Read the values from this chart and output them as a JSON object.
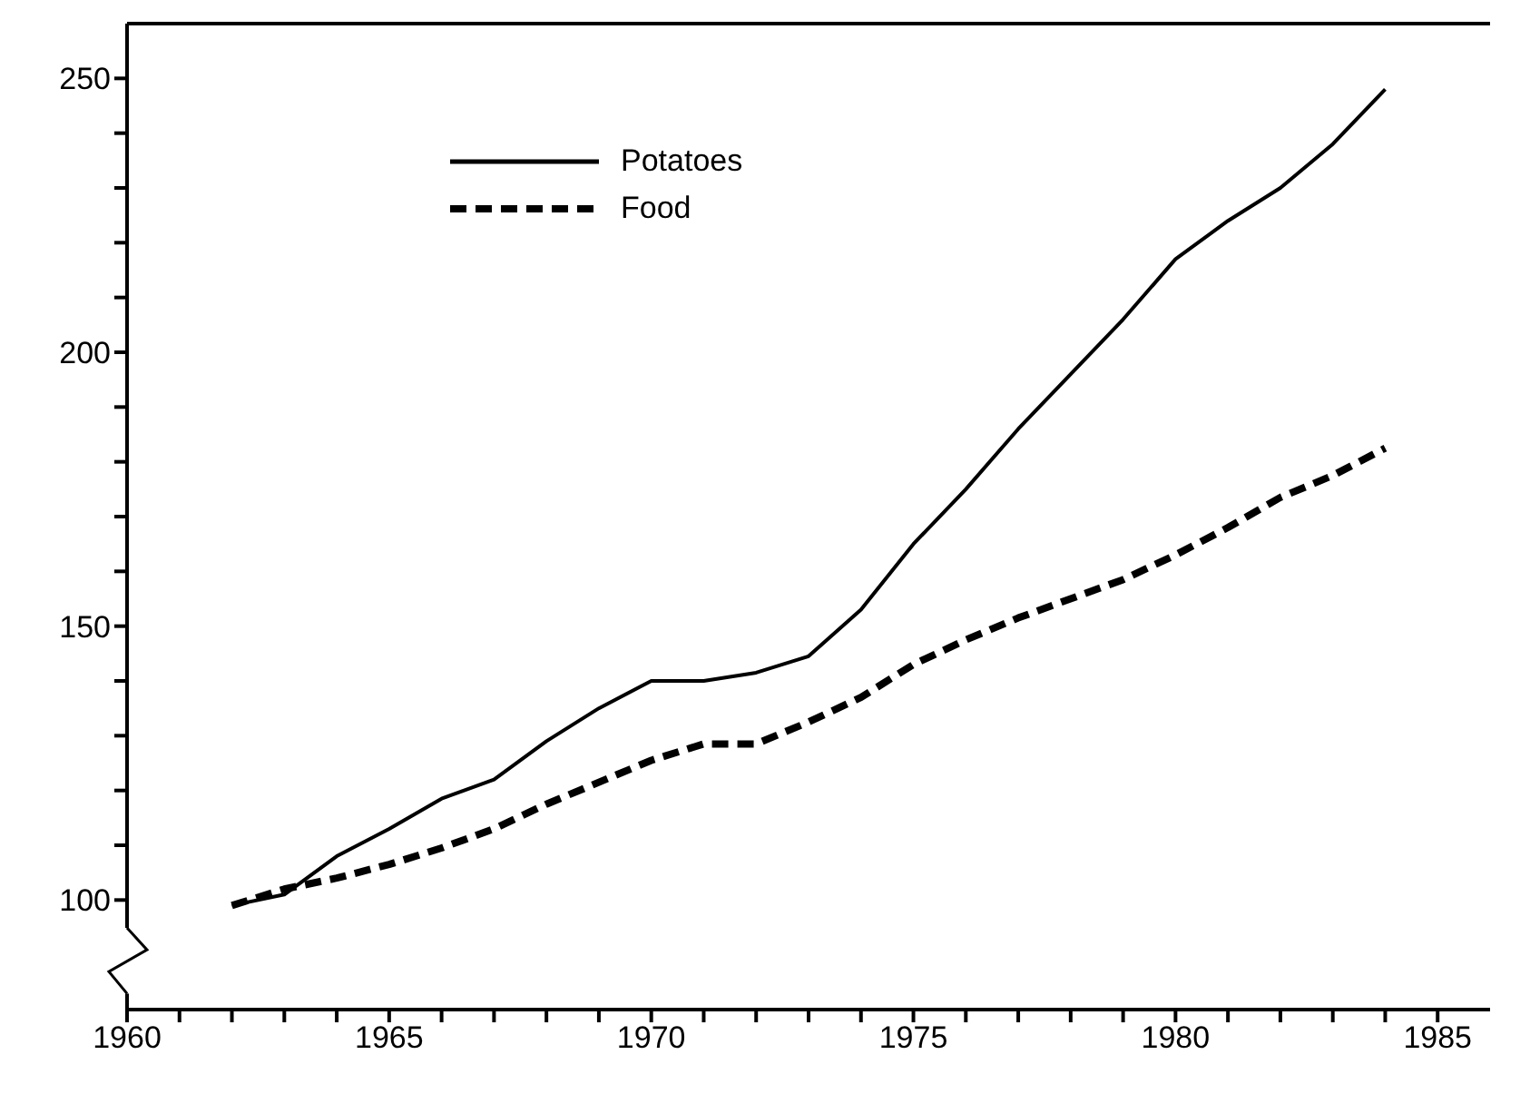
{
  "chart_data": {
    "type": "line",
    "x": [
      1962,
      1963,
      1964,
      1965,
      1966,
      1967,
      1968,
      1969,
      1970,
      1971,
      1972,
      1973,
      1974,
      1975,
      1976,
      1977,
      1978,
      1979,
      1980,
      1981,
      1982,
      1983,
      1984
    ],
    "series": [
      {
        "name": "Potatoes",
        "color": "#000000",
        "line_style": "solid",
        "values": [
          99,
          101,
          108,
          113,
          118.5,
          122,
          129,
          135,
          140,
          140,
          141.5,
          144.5,
          153,
          165,
          175,
          186,
          196,
          206,
          217,
          224,
          230,
          238,
          248
        ]
      },
      {
        "name": "Food",
        "color": "#000000",
        "line_style": "dashed",
        "values": [
          99,
          102,
          104,
          106.5,
          109.5,
          113,
          117.5,
          121.5,
          125.5,
          128.5,
          128.5,
          132.5,
          137,
          143,
          147.5,
          151.5,
          155,
          158.5,
          163,
          168,
          173.5,
          177.5,
          182.5
        ]
      }
    ],
    "xlim": [
      1960,
      1986
    ],
    "xticks": [
      1960,
      {
        "value": 1961,
        "label": null
      },
      {
        "value": 1962,
        "label": null
      },
      {
        "value": 1963,
        "label": null
      },
      {
        "value": 1964,
        "label": null
      },
      1965,
      {
        "value": 1966,
        "label": null
      },
      {
        "value": 1967,
        "label": null
      },
      {
        "value": 1968,
        "label": null
      },
      {
        "value": 1969,
        "label": null
      },
      1970,
      {
        "value": 1971,
        "label": null
      },
      {
        "value": 1972,
        "label": null
      },
      {
        "value": 1973,
        "label": null
      },
      {
        "value": 1974,
        "label": null
      },
      1975,
      {
        "value": 1976,
        "label": null
      },
      {
        "value": 1977,
        "label": null
      },
      {
        "value": 1978,
        "label": null
      },
      {
        "value": 1979,
        "label": null
      },
      1980,
      {
        "value": 1981,
        "label": null
      },
      {
        "value": 1982,
        "label": null
      },
      {
        "value": 1983,
        "label": null
      },
      {
        "value": 1984,
        "label": null
      },
      1985
    ],
    "ylim": [
      80,
      260
    ],
    "yticks": [
      100,
      {
        "value": 110,
        "label": null
      },
      {
        "value": 120,
        "label": null
      },
      {
        "value": 130,
        "label": null
      },
      {
        "value": 140,
        "label": null
      },
      150,
      {
        "value": 160,
        "label": null
      },
      {
        "value": 170,
        "label": null
      },
      {
        "value": 180,
        "label": null
      },
      {
        "value": 190,
        "label": null
      },
      200,
      {
        "value": 210,
        "label": null
      },
      {
        "value": 220,
        "label": null
      },
      {
        "value": 230,
        "label": null
      },
      {
        "value": 240,
        "label": null
      },
      250
    ],
    "grid": false,
    "legend": "top left",
    "marker": "none"
  }
}
